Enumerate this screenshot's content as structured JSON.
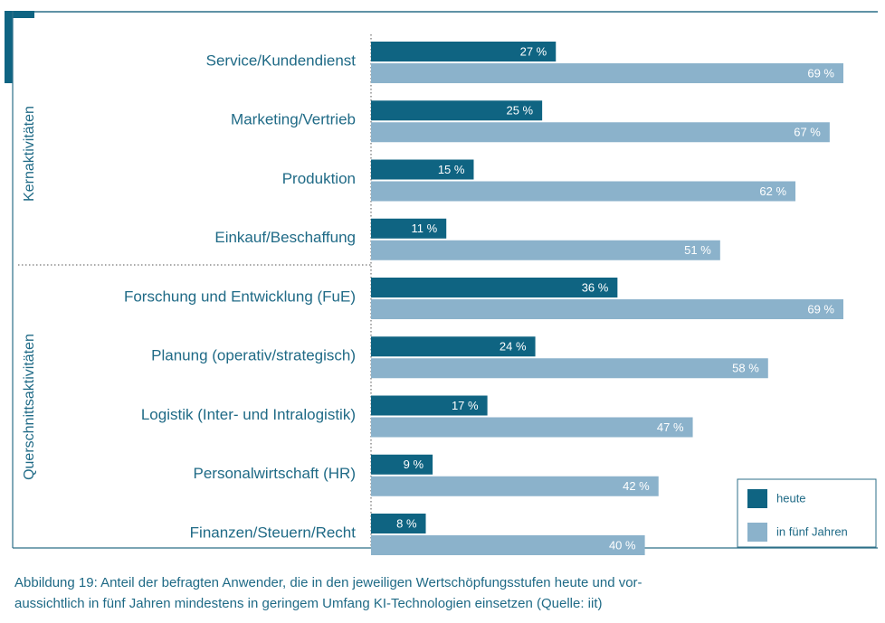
{
  "chart_data": {
    "type": "barh",
    "categories": [
      "Service/Kundendienst",
      "Marketing/Vertrieb",
      "Produktion",
      "Einkauf/Beschaffung",
      "Forschung und Entwicklung (FuE)",
      "Planung (operativ/strategisch)",
      "Logistik (Inter- und Intralogistik)",
      "Personalwirtschaft (HR)",
      "Finanzen/Steuern/Recht"
    ],
    "group_labels": [
      "Kernaktivitäten",
      "Querschnittsaktivitäten"
    ],
    "series": [
      {
        "name": "heute",
        "color": "#0f6482",
        "values": [
          27,
          25,
          15,
          11,
          36,
          24,
          17,
          9,
          8
        ],
        "value_labels": [
          "27 %",
          "25 %",
          "15 %",
          "11 %",
          "36 %",
          "24 %",
          "17 %",
          "9 %",
          "8 %"
        ]
      },
      {
        "name": "in fünf Jahren",
        "color": "#8bb2cb",
        "values": [
          69,
          67,
          62,
          51,
          69,
          58,
          47,
          42,
          40
        ],
        "value_labels": [
          "69 %",
          "67 %",
          "62 %",
          "51 %",
          "69 %",
          "58 %",
          "47 %",
          "42 %",
          "40 %"
        ]
      }
    ],
    "xlim": [
      0,
      69
    ],
    "legend": "lower right",
    "caption": [
      "Abbildung 19: Anteil der befragten Anwender, die in den jeweiligen Wertschöpfungsstufen heute und vor-",
      "aussichtlich in fünf Jahren mindestens in geringem Umfang KI-Technologien einsetzen (Quelle: iit)"
    ]
  }
}
